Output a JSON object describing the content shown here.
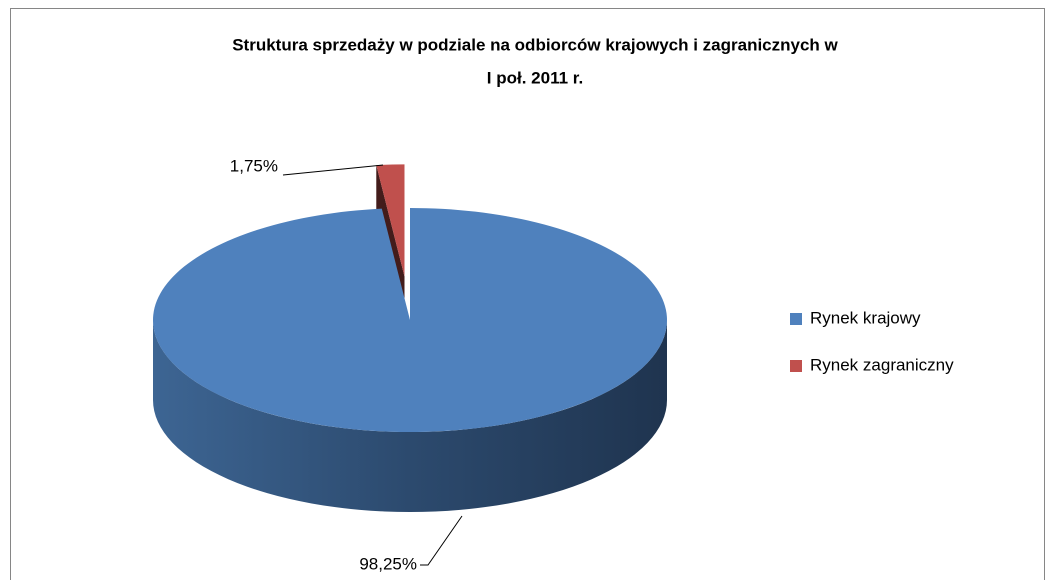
{
  "chart_data": {
    "type": "pie",
    "title": [
      "Struktura sprzedaży w podziale na odbiorców krajowych i zagranicznych w",
      "I poł. 2011 r."
    ],
    "categories": [
      "Rynek krajowy",
      "Rynek zagraniczny"
    ],
    "values": [
      98.25,
      1.75
    ],
    "value_labels": [
      "98,25%",
      "1,75%"
    ],
    "colors": [
      "#4f81bd",
      "#c0504d"
    ],
    "legend": "right"
  }
}
